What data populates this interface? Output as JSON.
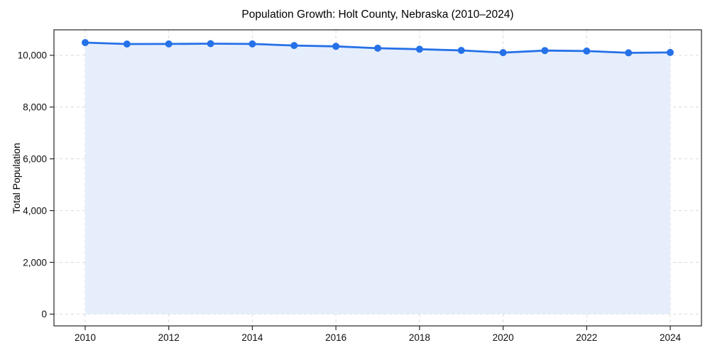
{
  "figure": {
    "background": "#ffffff"
  },
  "chart_data": {
    "type": "area",
    "title": "Population Growth: Holt County, Nebraska (2010–2024)",
    "xlabel": "",
    "ylabel": "Total Population",
    "x": [
      2010,
      2011,
      2012,
      2013,
      2014,
      2015,
      2016,
      2017,
      2018,
      2019,
      2020,
      2021,
      2022,
      2023,
      2024
    ],
    "series": [
      {
        "name": "Total Population",
        "values": [
          10490,
          10435,
          10440,
          10450,
          10440,
          10380,
          10345,
          10275,
          10235,
          10190,
          10105,
          10185,
          10165,
          10095,
          10110
        ]
      }
    ],
    "x_tick_values": [
      2010,
      2012,
      2014,
      2016,
      2018,
      2020,
      2022,
      2024
    ],
    "x_tick_labels": [
      "2010",
      "2012",
      "2014",
      "2016",
      "2018",
      "2020",
      "2022",
      "2024"
    ],
    "y_tick_values": [
      0,
      2000,
      4000,
      6000,
      8000,
      10000
    ],
    "y_tick_labels": [
      "0",
      "2,000",
      "4,000",
      "6,000",
      "8,000",
      "10,000"
    ],
    "xlim": [
      2009.253,
      2024.747
    ],
    "ylim": [
      -455,
      10985
    ],
    "grid": true,
    "grid_style": "dashed",
    "legend": "none",
    "line_color": "#2571e8",
    "marker_color": "#2571e8",
    "fill_color": "#e6eefc",
    "grid_color": "#d9d9d9",
    "spine_color": "#262626",
    "text_color": "#0f0f0f"
  }
}
